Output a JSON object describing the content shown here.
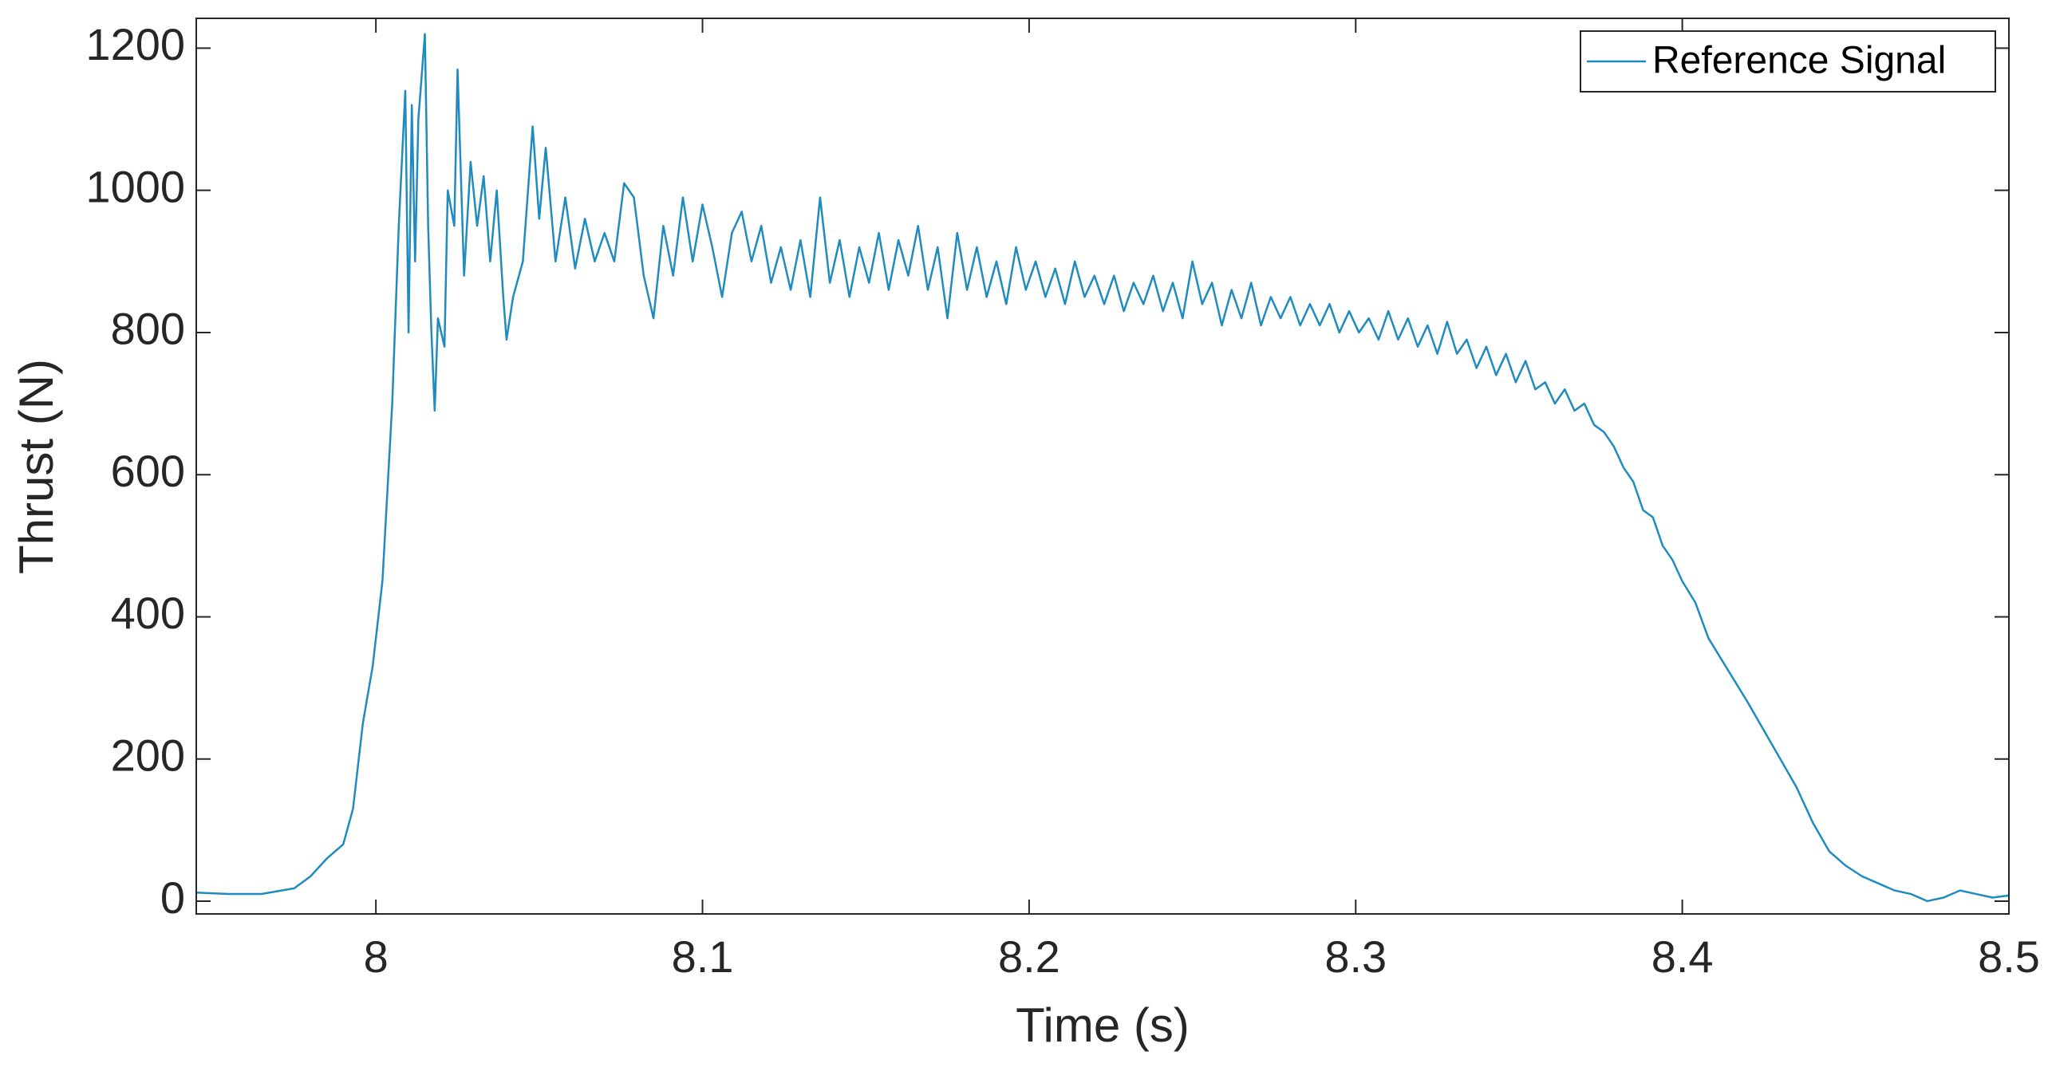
{
  "chart_data": {
    "type": "line",
    "xlabel": "Time (s)",
    "ylabel": "Thrust (N)",
    "x": [
      7.945,
      7.955,
      7.965,
      7.975,
      7.98,
      7.985,
      7.99,
      7.993,
      7.996,
      7.999,
      8.002,
      8.005,
      8.007,
      8.009,
      8.01,
      8.011,
      8.012,
      8.013,
      8.015,
      8.016,
      8.017,
      8.018,
      8.019,
      8.021,
      8.022,
      8.024,
      8.025,
      8.027,
      8.029,
      8.031,
      8.033,
      8.035,
      8.037,
      8.039,
      8.04,
      8.042,
      8.045,
      8.048,
      8.05,
      8.052,
      8.055,
      8.058,
      8.061,
      8.064,
      8.067,
      8.07,
      8.073,
      8.076,
      8.079,
      8.082,
      8.085,
      8.088,
      8.091,
      8.094,
      8.097,
      8.1,
      8.103,
      8.106,
      8.109,
      8.112,
      8.115,
      8.118,
      8.121,
      8.124,
      8.127,
      8.13,
      8.133,
      8.136,
      8.139,
      8.142,
      8.145,
      8.148,
      8.151,
      8.154,
      8.157,
      8.16,
      8.163,
      8.166,
      8.169,
      8.172,
      8.175,
      8.178,
      8.181,
      8.184,
      8.187,
      8.19,
      8.193,
      8.196,
      8.199,
      8.202,
      8.205,
      8.208,
      8.211,
      8.214,
      8.217,
      8.22,
      8.223,
      8.226,
      8.229,
      8.232,
      8.235,
      8.238,
      8.241,
      8.244,
      8.247,
      8.25,
      8.253,
      8.256,
      8.259,
      8.262,
      8.265,
      8.268,
      8.271,
      8.274,
      8.277,
      8.28,
      8.283,
      8.286,
      8.289,
      8.292,
      8.295,
      8.298,
      8.301,
      8.304,
      8.307,
      8.31,
      8.313,
      8.316,
      8.319,
      8.322,
      8.325,
      8.328,
      8.331,
      8.334,
      8.337,
      8.34,
      8.343,
      8.346,
      8.349,
      8.352,
      8.355,
      8.358,
      8.361,
      8.364,
      8.367,
      8.37,
      8.373,
      8.376,
      8.379,
      8.382,
      8.385,
      8.388,
      8.391,
      8.394,
      8.397,
      8.4,
      8.404,
      8.408,
      8.412,
      8.416,
      8.42,
      8.425,
      8.43,
      8.435,
      8.44,
      8.445,
      8.45,
      8.455,
      8.46,
      8.465,
      8.47,
      8.475,
      8.48,
      8.485,
      8.49,
      8.495,
      8.5
    ],
    "series": [
      {
        "name": "Reference Signal",
        "color": "#1f8bbf",
        "values": [
          12,
          10,
          10,
          18,
          35,
          60,
          80,
          130,
          250,
          330,
          450,
          700,
          950,
          1140,
          800,
          1120,
          900,
          1100,
          1220,
          950,
          800,
          690,
          820,
          780,
          1000,
          950,
          1170,
          880,
          1040,
          950,
          1020,
          900,
          1000,
          850,
          790,
          850,
          900,
          1090,
          960,
          1060,
          900,
          990,
          890,
          960,
          900,
          940,
          900,
          1010,
          990,
          880,
          820,
          950,
          880,
          990,
          900,
          980,
          920,
          850,
          940,
          970,
          900,
          950,
          870,
          920,
          860,
          930,
          850,
          990,
          870,
          930,
          850,
          920,
          870,
          940,
          860,
          930,
          880,
          950,
          860,
          920,
          820,
          940,
          860,
          920,
          850,
          900,
          840,
          920,
          860,
          900,
          850,
          890,
          840,
          900,
          850,
          880,
          840,
          880,
          830,
          870,
          840,
          880,
          830,
          870,
          820,
          900,
          840,
          870,
          810,
          860,
          820,
          870,
          810,
          850,
          820,
          850,
          810,
          840,
          810,
          840,
          800,
          830,
          800,
          820,
          790,
          830,
          790,
          820,
          780,
          810,
          770,
          815,
          770,
          790,
          750,
          780,
          740,
          770,
          730,
          760,
          720,
          730,
          700,
          720,
          690,
          700,
          670,
          660,
          640,
          610,
          590,
          550,
          540,
          500,
          480,
          450,
          420,
          370,
          340,
          310,
          280,
          240,
          200,
          160,
          110,
          70,
          50,
          35,
          25,
          15,
          10,
          0,
          5,
          15,
          10,
          5,
          8
        ]
      }
    ],
    "xlim": [
      7.945,
      8.5
    ],
    "xticks": [
      8,
      8.1,
      8.2,
      8.3,
      8.4,
      8.5
    ],
    "ylim": [
      -18,
      1242
    ],
    "yticks": [
      0,
      200,
      400,
      600,
      800,
      1000,
      1200
    ],
    "grid": false,
    "legend": "northeast"
  }
}
